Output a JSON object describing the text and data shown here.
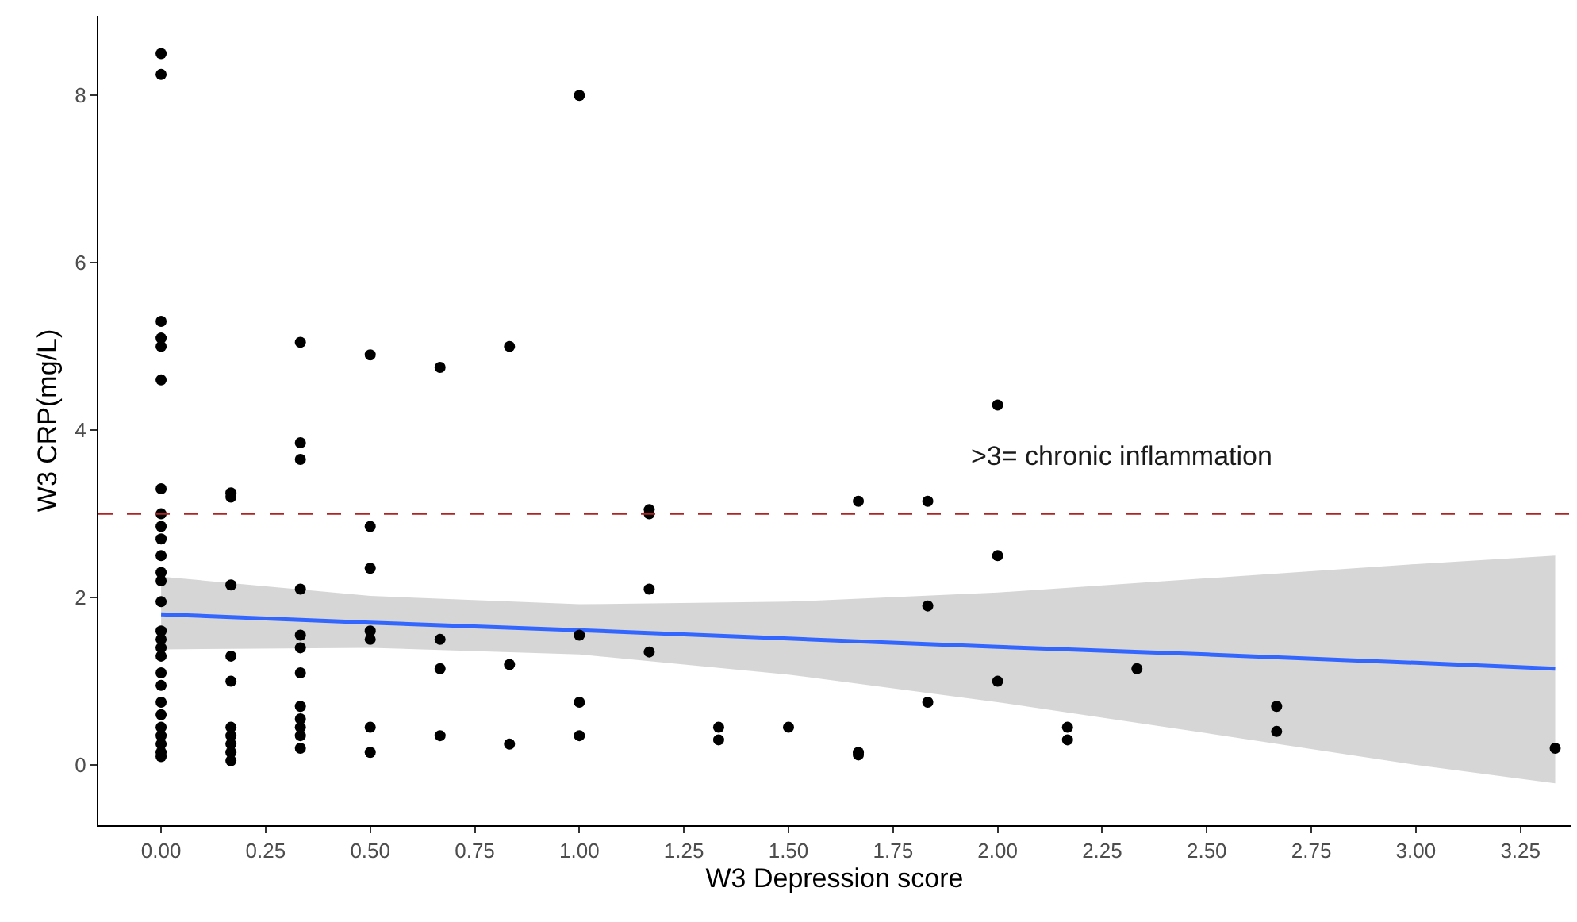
{
  "chart_data": {
    "type": "scatter",
    "xlabel": "W3 Depression score",
    "ylabel": "W3 CRP(mg/L)",
    "xlim": [
      -0.15,
      3.37
    ],
    "ylim": [
      -0.72,
      8.95
    ],
    "xticks": [
      {
        "value": 0,
        "label": "0.00"
      },
      {
        "value": 0.25,
        "label": "0.25"
      },
      {
        "value": 0.5,
        "label": "0.50"
      },
      {
        "value": 0.75,
        "label": "0.75"
      },
      {
        "value": 1,
        "label": "1.00"
      },
      {
        "value": 1.25,
        "label": "1.25"
      },
      {
        "value": 1.5,
        "label": "1.50"
      },
      {
        "value": 1.75,
        "label": "1.75"
      },
      {
        "value": 2,
        "label": "2.00"
      },
      {
        "value": 2.25,
        "label": "2.25"
      },
      {
        "value": 2.5,
        "label": "2.50"
      },
      {
        "value": 2.75,
        "label": "2.75"
      },
      {
        "value": 3,
        "label": "3.00"
      },
      {
        "value": 3.25,
        "label": "3.25"
      }
    ],
    "yticks": [
      0,
      2,
      4,
      6,
      8
    ],
    "grid": false,
    "marker": "circle",
    "ref_lines": [
      {
        "axis": "y",
        "value": 3,
        "color": "#b22222",
        "line_style": "dashed"
      }
    ],
    "annotations": [
      ">3= chronic inflammation"
    ],
    "series": [
      {
        "color": "#000000",
        "x": [
          0,
          0,
          0,
          0,
          0,
          0,
          0,
          0,
          0,
          0,
          0,
          0,
          0,
          0,
          0,
          0,
          0,
          0,
          0,
          0,
          0,
          0,
          0,
          0,
          0,
          0,
          0,
          0.167,
          0.167,
          0.167,
          0.167,
          0.167,
          0.167,
          0.167,
          0.167,
          0.167,
          0.167,
          0.333,
          0.333,
          0.333,
          0.333,
          0.333,
          0.333,
          0.333,
          0.333,
          0.333,
          0.333,
          0.333,
          0.333,
          0.5,
          0.5,
          0.5,
          0.5,
          0.5,
          0.5,
          0.5,
          0.667,
          0.667,
          0.667,
          0.667,
          0.833,
          0.833,
          0.833,
          1,
          1,
          1,
          1,
          1.167,
          1.167,
          1.167,
          1.167,
          1.333,
          1.333,
          1.5,
          1.667,
          1.667,
          1.667,
          1.833,
          1.833,
          1.833,
          2,
          2,
          2,
          2.167,
          2.167,
          2.333,
          2.667,
          2.667,
          3.333
        ],
        "values": [
          8.5,
          8.25,
          5.3,
          5.1,
          5.0,
          4.6,
          3.3,
          3.0,
          2.85,
          2.7,
          2.5,
          2.3,
          2.2,
          1.95,
          1.6,
          1.5,
          1.4,
          1.3,
          1.1,
          0.95,
          0.75,
          0.6,
          0.45,
          0.35,
          0.25,
          0.15,
          0.1,
          3.25,
          3.2,
          2.15,
          1.3,
          1.0,
          0.45,
          0.35,
          0.25,
          0.15,
          0.05,
          5.05,
          3.85,
          3.65,
          2.1,
          1.55,
          1.4,
          1.1,
          0.7,
          0.55,
          0.45,
          0.35,
          0.2,
          4.9,
          2.85,
          2.35,
          1.6,
          1.5,
          0.45,
          0.15,
          4.75,
          1.5,
          1.15,
          0.35,
          5.0,
          1.2,
          0.25,
          8.0,
          1.55,
          0.75,
          0.35,
          3.05,
          3.0,
          2.1,
          1.35,
          0.45,
          0.3,
          0.45,
          3.15,
          0.15,
          0.12,
          3.15,
          1.9,
          0.75,
          4.3,
          2.5,
          1.0,
          0.45,
          0.3,
          1.15,
          0.7,
          0.4,
          0.2
        ]
      },
      {
        "type": "line",
        "color": "#3366ff",
        "marker": "none",
        "line_style": "solid",
        "x": [
          0,
          0.5,
          1,
          1.5,
          2,
          2.5,
          3,
          3.333
        ],
        "values": [
          1.8,
          1.7,
          1.61,
          1.51,
          1.41,
          1.32,
          1.22,
          1.15
        ],
        "lower": [
          1.38,
          1.4,
          1.32,
          1.08,
          0.75,
          0.38,
          0.0,
          -0.22
        ],
        "upper": [
          2.25,
          2.02,
          1.92,
          1.95,
          2.06,
          2.23,
          2.4,
          2.5
        ]
      }
    ]
  }
}
